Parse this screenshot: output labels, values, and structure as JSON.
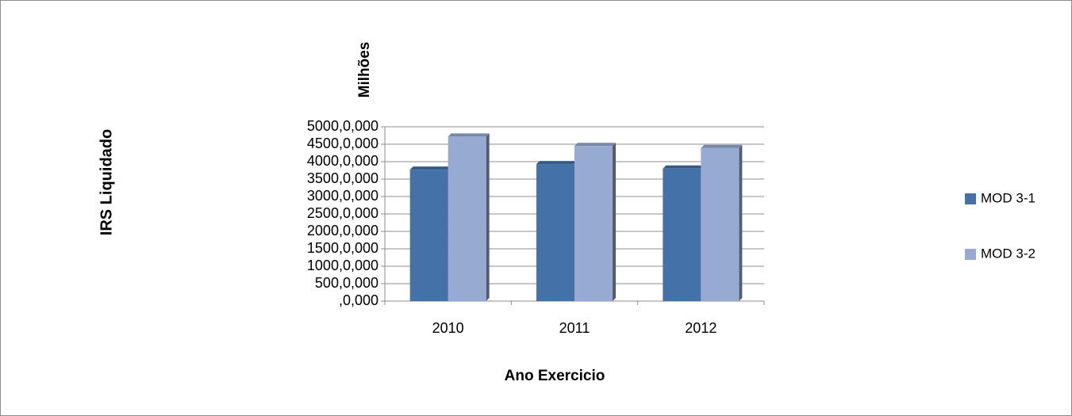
{
  "chart_data": {
    "type": "bar",
    "title": "",
    "ylabel": "IRS Liquidado",
    "xlabel": "Ano Exercicio",
    "y_units_label": "Milhões",
    "categories": [
      "2010",
      "2011",
      "2012"
    ],
    "series": [
      {
        "name": "MOD 3-1",
        "values": [
          3770,
          3930,
          3800
        ],
        "color": "#4472A8"
      },
      {
        "name": "MOD 3-2",
        "values": [
          4720,
          4450,
          4390
        ],
        "color": "#96AAD2"
      }
    ],
    "ylim": [
      0,
      5000
    ],
    "y_ticks": [
      0,
      500,
      1000,
      1500,
      2000,
      2500,
      3000,
      3500,
      4000,
      4500,
      5000
    ],
    "y_tick_labels": [
      ",0,000",
      "500,0,000",
      "1000,0,000",
      "1500,0,000",
      "2000,0,000",
      "2500,0,000",
      "3000,0,000",
      "3500,0,000",
      "4000,0,000",
      "4500,0,000",
      "5000,0,000"
    ],
    "grid": true,
    "legend_position": "right",
    "style": "3d-bar"
  }
}
